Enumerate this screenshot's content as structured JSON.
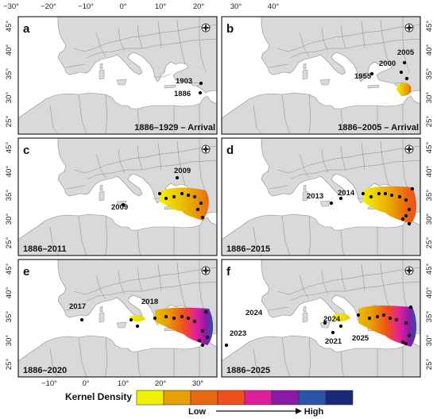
{
  "axes": {
    "top_ticks": [
      "−30°",
      "−20°",
      "−10°",
      "0°",
      "10°",
      "20°",
      "30°",
      "40°"
    ],
    "bottom_ticks": [
      "−10°",
      "0°",
      "10°",
      "20°",
      "30°"
    ],
    "lat_ticks": [
      "45°",
      "40°",
      "35°",
      "30°",
      "25°"
    ]
  },
  "panels": [
    {
      "label": "a",
      "title": "1886–1929 – Arrival",
      "years": [
        "1903",
        "1886"
      ]
    },
    {
      "label": "b",
      "title": "1886–2005 – Arrival",
      "years": [
        "2005",
        "2000",
        "1955"
      ]
    },
    {
      "label": "c",
      "title": "1886–2011",
      "years": [
        "2009",
        "2009"
      ]
    },
    {
      "label": "d",
      "title": "1886–2015",
      "years": [
        "2013",
        "2014"
      ]
    },
    {
      "label": "e",
      "title": "1886–2020",
      "years": [
        "2017",
        "2018"
      ]
    },
    {
      "label": "f",
      "title": "1886–2025",
      "years": [
        "2024",
        "2024",
        "2025",
        "2021",
        "2023"
      ]
    }
  ],
  "legend": {
    "title": "Kernel Density",
    "low": "Low",
    "high": "High",
    "colors": [
      "#f2f200",
      "#e8a000",
      "#e86a10",
      "#f0501c",
      "#e0209a",
      "#8a1aa8",
      "#2b54a8",
      "#1a2a78"
    ]
  },
  "icons": {
    "compass": "compass-rose-icon",
    "arrow": "arrow-right-icon"
  },
  "colors": {
    "land": "#d9d9d9",
    "sea": "#ffffff",
    "border": "#8a8a8a",
    "point": "#000000"
  }
}
